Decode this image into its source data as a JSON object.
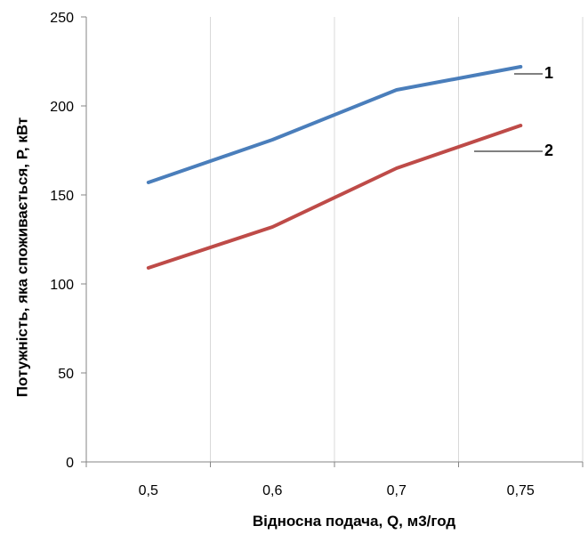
{
  "chart_data": {
    "type": "line",
    "categories": [
      "0,5",
      "0,6",
      "0,7",
      "0,75"
    ],
    "series": [
      {
        "name": "1",
        "values": [
          157,
          181,
          209,
          222
        ],
        "color": "#4a7ebb"
      },
      {
        "name": "2",
        "values": [
          109,
          132,
          165,
          189
        ],
        "color": "#be4b48"
      }
    ],
    "title": "",
    "xlabel": "Відносна подача, Q, м3/год",
    "ylabel": "Потужність, яка споживається, P, кВт",
    "ylim": [
      0,
      250
    ],
    "yticks": [
      0,
      50,
      100,
      150,
      200,
      250
    ],
    "ytick_labels": [
      "0",
      "50",
      "100",
      "150",
      "200",
      "250"
    ],
    "grid": "vertical",
    "legend": "inline-labels-right"
  }
}
